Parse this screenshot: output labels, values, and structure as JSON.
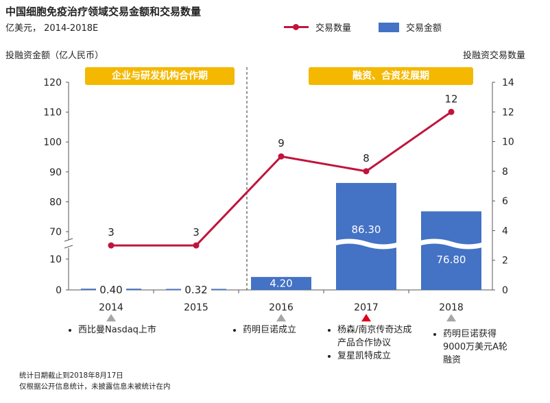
{
  "header": {
    "title": "中国细胞免疫治疗领域交易金额和交易数量",
    "subtitle": "亿美元， 2014-2018E"
  },
  "legend": {
    "line_label": "交易数量",
    "bar_label": "交易金额"
  },
  "axes": {
    "left_title": "投融资金额（亿人民币）",
    "right_title": "投融资交易数量"
  },
  "phases": [
    {
      "label": "企业与研发机构合作期"
    },
    {
      "label": "融资、合资发展期"
    }
  ],
  "events": [
    {
      "year": "2014",
      "items": [
        "西比曼Nasdaq上市"
      ],
      "highlight": false
    },
    {
      "year": "2015",
      "items": [],
      "highlight": false
    },
    {
      "year": "2016",
      "items": [
        "药明巨诺成立"
      ],
      "highlight": false
    },
    {
      "year": "2017",
      "items": [
        "杨森/南京传奇达成产品合作协议",
        "复星凯特成立"
      ],
      "highlight": true
    },
    {
      "year": "2018",
      "items": [
        "药明巨诺获得9000万美元A轮融资"
      ],
      "highlight": false
    }
  ],
  "notes": [
    "统计日期截止到2018年8月17日",
    "仅根据公开信息统计，未披露信息未被统计在内"
  ],
  "colors": {
    "bar": "#4472c4",
    "line": "#c0143c",
    "phase": "#f4b800",
    "marker_normal": "#a6a6a6",
    "marker_highlight": "#e0001b"
  },
  "chart_data": {
    "type": "bar",
    "categories": [
      "2014",
      "2015",
      "2016",
      "2017",
      "2018"
    ],
    "series": [
      {
        "name": "交易金额",
        "type": "bar",
        "axis": "left",
        "values": [
          0.4,
          0.32,
          4.2,
          86.3,
          76.8
        ],
        "labels": [
          "0.40",
          "0.32",
          "4.20",
          "86.30",
          "76.80"
        ]
      },
      {
        "name": "交易数量",
        "type": "line",
        "axis": "right",
        "values": [
          3,
          3,
          9,
          8,
          12
        ],
        "labels": [
          "3",
          "3",
          "9",
          "8",
          "12"
        ]
      }
    ],
    "left_axis": {
      "ticks": [
        0,
        10,
        70,
        80,
        90,
        100,
        110,
        120
      ],
      "broken_between": [
        10,
        70
      ]
    },
    "right_axis": {
      "ticks": [
        0,
        2,
        4,
        6,
        8,
        10,
        12,
        14
      ],
      "ylim": [
        0,
        14
      ]
    }
  }
}
